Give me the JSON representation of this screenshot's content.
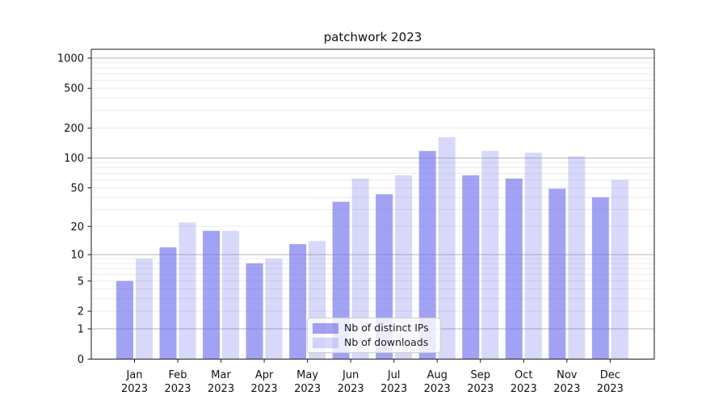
{
  "chart_data": {
    "type": "bar",
    "title": "patchwork 2023",
    "categories": [
      "Jan",
      "Feb",
      "Mar",
      "Apr",
      "May",
      "Jun",
      "Jul",
      "Aug",
      "Sep",
      "Oct",
      "Nov",
      "Dec"
    ],
    "category_year": "2023",
    "series": [
      {
        "name": "Nb of distinct IPs",
        "color": "#7070ee",
        "alpha": 0.65,
        "values": [
          5,
          12,
          18,
          8,
          13,
          36,
          43,
          118,
          67,
          62,
          49,
          40
        ]
      },
      {
        "name": "Nb of downloads",
        "color": "#7070ee",
        "alpha": 0.27,
        "values": [
          9,
          22,
          18,
          9,
          14,
          62,
          67,
          162,
          118,
          113,
          104,
          60
        ]
      }
    ],
    "y_axis": {
      "scale": "symlog",
      "ticks": [
        0,
        1,
        2,
        5,
        10,
        20,
        50,
        100,
        200,
        500,
        1000
      ],
      "max": 1225
    },
    "x_axis": {
      "tick_label_year": "2023"
    },
    "grid": {
      "enabled": true,
      "major_color": "#b5b5b5",
      "minor_color": "#ebebeb",
      "majors": [
        1,
        10,
        100,
        1000
      ]
    },
    "legend": {
      "position": "lower center"
    },
    "spine_color": "#1a1a1a",
    "text_color": "#111111"
  }
}
